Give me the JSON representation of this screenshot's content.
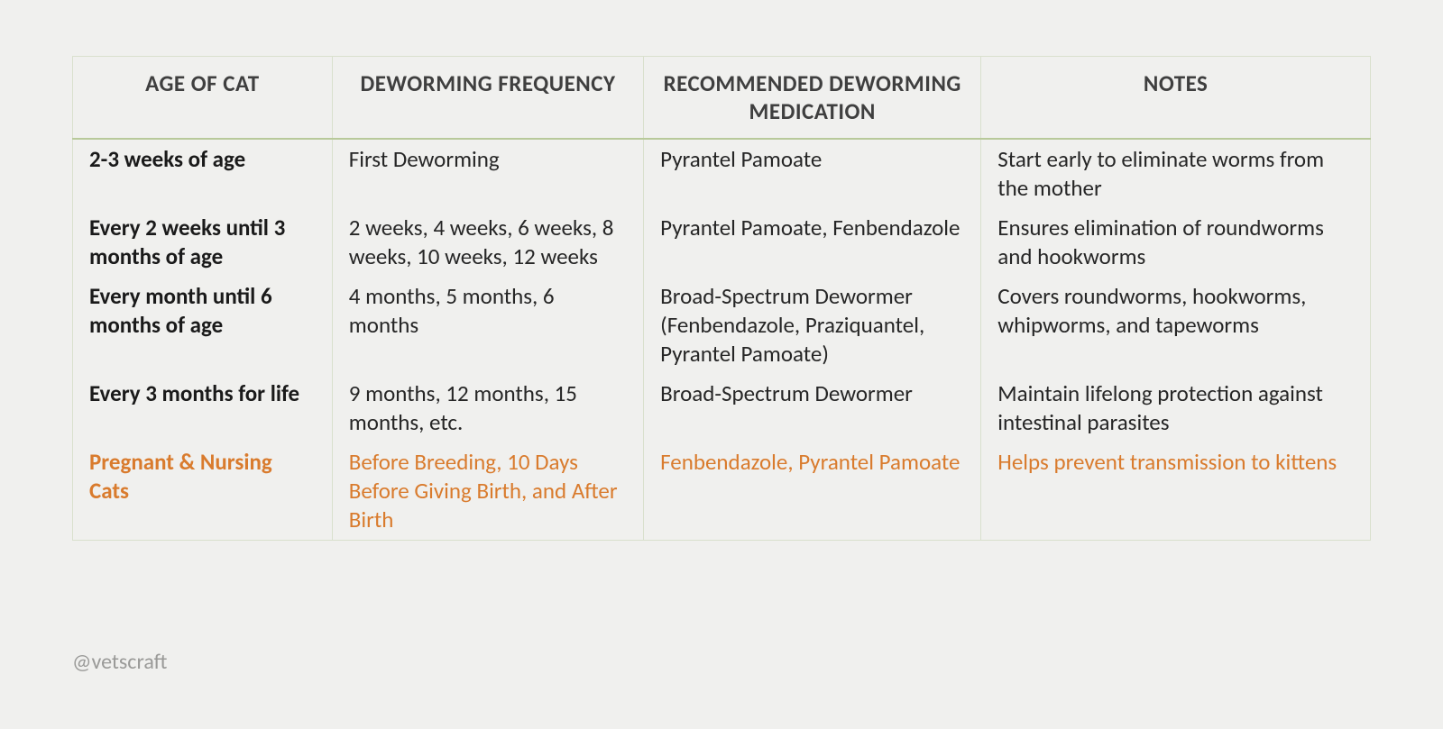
{
  "table": {
    "type": "table",
    "background_color": "#f0f0ee",
    "border_color": "#d9e0cd",
    "header_border_bottom_color": "#b8c99a",
    "header_text_color": "#3f3f3f",
    "body_text_color": "#262626",
    "age_column_font_weight": 700,
    "highlight_text_color": "#d97b2d",
    "font_size_pt": 19,
    "column_widths_pct": [
      20,
      24,
      26,
      30
    ],
    "columns": [
      "AGE OF CAT",
      "DEWORMING FREQUENCY",
      "RECOMMENDED DEWORMING MEDICATION",
      "NOTES"
    ],
    "rows": [
      {
        "age": "2-3 weeks of age",
        "frequency": "First Deworming",
        "medication": "Pyrantel Pamoate",
        "notes": "Start early to eliminate worms from the mother",
        "highlight": false
      },
      {
        "age": "Every 2 weeks until 3 months of age",
        "frequency": "2 weeks, 4 weeks, 6 weeks, 8 weeks, 10 weeks, 12 weeks",
        "medication": "Pyrantel Pamoate, Fenbendazole",
        "notes": "Ensures elimination of roundworms and hookworms",
        "highlight": false
      },
      {
        "age": "Every month until 6 months of age",
        "frequency": "4 months, 5 months, 6 months",
        "medication": "Broad-Spectrum Dewormer (Fenbendazole, Praziquantel, Pyrantel Pamoate)",
        "notes": "Covers roundworms, hookworms, whipworms, and tapeworms",
        "highlight": false
      },
      {
        "age": "Every 3 months for life",
        "frequency": "9 months, 12 months, 15 months, etc.",
        "medication": "Broad-Spectrum Dewormer",
        "notes": "Maintain lifelong protection against intestinal parasites",
        "highlight": false
      },
      {
        "age": "Pregnant & Nursing Cats",
        "frequency": "Before Breeding, 10 Days Before Giving Birth, and After Birth",
        "medication": "Fenbendazole, Pyrantel Pamoate",
        "notes": "Helps prevent transmission to kittens",
        "highlight": true
      }
    ]
  },
  "credit": "@vetscraft",
  "credit_color": "#9a9a98"
}
